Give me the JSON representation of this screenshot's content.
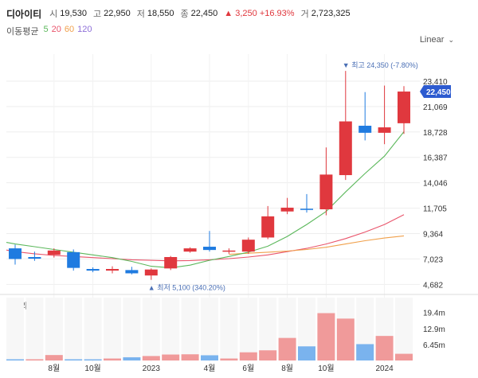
{
  "header": {
    "name": "디아이티",
    "open_label": "시",
    "open": "19,530",
    "high_label": "고",
    "high": "22,950",
    "low_label": "저",
    "low": "18,550",
    "close_label": "종",
    "close": "22,450",
    "change": "▲ 3,250 +16.93%",
    "volume_label": "거",
    "volume": "2,723,325"
  },
  "ma_legend": {
    "title": "이동평균",
    "items": [
      "5",
      "20",
      "60",
      "120"
    ],
    "colors": [
      "#5cb85c",
      "#e9546b",
      "#f0a04b",
      "#8e6fd8"
    ]
  },
  "scale_button": "Linear",
  "colors": {
    "up": "#e0383e",
    "down": "#1f7be0",
    "ma5": "#5cb85c",
    "ma20": "#e9546b",
    "ma60": "#f0a04b",
    "vol_up": "#f09a9a",
    "vol_down": "#7ab3ee",
    "price_tag": "#2d5bd0"
  },
  "chart_data": {
    "type": "candlestick",
    "price_axis": {
      "ticks": [
        4682,
        7023,
        9364,
        11705,
        14046,
        16387,
        18728,
        21069,
        23410
      ],
      "range": [
        3900,
        25900
      ]
    },
    "x_labels": [
      {
        "label": "8월",
        "index": 2
      },
      {
        "label": "10월",
        "index": 4
      },
      {
        "label": "2023",
        "index": 7
      },
      {
        "label": "4월",
        "index": 10
      },
      {
        "label": "6월",
        "index": 12
      },
      {
        "label": "8월",
        "index": 14
      },
      {
        "label": "10월",
        "index": 16
      },
      {
        "label": "2024",
        "index": 19
      }
    ],
    "candles": [
      {
        "o": 8000,
        "h": 8350,
        "l": 6500,
        "c": 7020
      },
      {
        "o": 7200,
        "h": 7700,
        "l": 6850,
        "c": 7050
      },
      {
        "o": 7400,
        "h": 8000,
        "l": 7150,
        "c": 7800
      },
      {
        "o": 7650,
        "h": 7900,
        "l": 5950,
        "c": 6200
      },
      {
        "o": 6100,
        "h": 6250,
        "l": 5800,
        "c": 5950
      },
      {
        "o": 5950,
        "h": 6350,
        "l": 5700,
        "c": 6100
      },
      {
        "o": 6000,
        "h": 6300,
        "l": 5600,
        "c": 5700
      },
      {
        "o": 5500,
        "h": 6150,
        "l": 5100,
        "c": 6050
      },
      {
        "o": 6150,
        "h": 7300,
        "l": 6000,
        "c": 7200
      },
      {
        "o": 7700,
        "h": 8100,
        "l": 7600,
        "c": 8000
      },
      {
        "o": 8150,
        "h": 9600,
        "l": 7700,
        "c": 7850
      },
      {
        "o": 7750,
        "h": 8000,
        "l": 7500,
        "c": 7800
      },
      {
        "o": 7700,
        "h": 9000,
        "l": 7500,
        "c": 8800
      },
      {
        "o": 9000,
        "h": 11900,
        "l": 8850,
        "c": 10950
      },
      {
        "o": 11400,
        "h": 12650,
        "l": 11150,
        "c": 11750
      },
      {
        "o": 11650,
        "h": 13000,
        "l": 11300,
        "c": 11600
      },
      {
        "o": 11600,
        "h": 17300,
        "l": 11050,
        "c": 14800
      },
      {
        "o": 14750,
        "h": 24350,
        "l": 14300,
        "c": 19700
      },
      {
        "o": 19300,
        "h": 22400,
        "l": 17950,
        "c": 18650
      },
      {
        "o": 18650,
        "h": 23000,
        "l": 17600,
        "c": 19150
      },
      {
        "o": 19530,
        "h": 22950,
        "l": 18550,
        "c": 22450
      }
    ],
    "ma5": [
      8400,
      8150,
      7900,
      7650,
      7400,
      7150,
      6800,
      6350,
      6200,
      6450,
      6900,
      7250,
      7650,
      8200,
      9100,
      10200,
      11400,
      13200,
      14900,
      16500,
      18750
    ],
    "ma20": [
      7700,
      7500,
      7350,
      7250,
      7150,
      7050,
      6950,
      6900,
      6850,
      6880,
      6950,
      7050,
      7200,
      7400,
      7700,
      8000,
      8400,
      8900,
      9500,
      10200,
      11100
    ],
    "ma60": [
      null,
      null,
      null,
      null,
      null,
      null,
      null,
      null,
      null,
      null,
      null,
      7450,
      7550,
      7650,
      7750,
      7900,
      8100,
      8400,
      8700,
      8950,
      9150
    ],
    "high_marker": {
      "label": "▼ 최고 24,350 (-7.80%)",
      "index": 17,
      "price": 24350
    },
    "low_marker": {
      "label": "▲ 최저 5,100 (340.20%)",
      "index": 7,
      "price": 5100
    },
    "current_price_label": "22,450",
    "volume": {
      "title": "거래량",
      "axis_ticks": [
        {
          "label": "19.4m",
          "value": 19.4
        },
        {
          "label": "12.9m",
          "value": 12.9
        },
        {
          "label": "6.45m",
          "value": 6.45
        }
      ],
      "max": 26,
      "values": [
        0.5,
        0.5,
        2.2,
        0.5,
        0.3,
        0.8,
        1.3,
        1.8,
        2.4,
        2.5,
        2.1,
        0.8,
        3.3,
        4.1,
        9.1,
        5.7,
        19.1,
        16.9,
        6.6,
        9.9,
        2.7
      ],
      "up": [
        false,
        true,
        true,
        false,
        false,
        true,
        false,
        true,
        true,
        true,
        false,
        true,
        true,
        true,
        true,
        false,
        true,
        true,
        false,
        true,
        true
      ]
    }
  }
}
